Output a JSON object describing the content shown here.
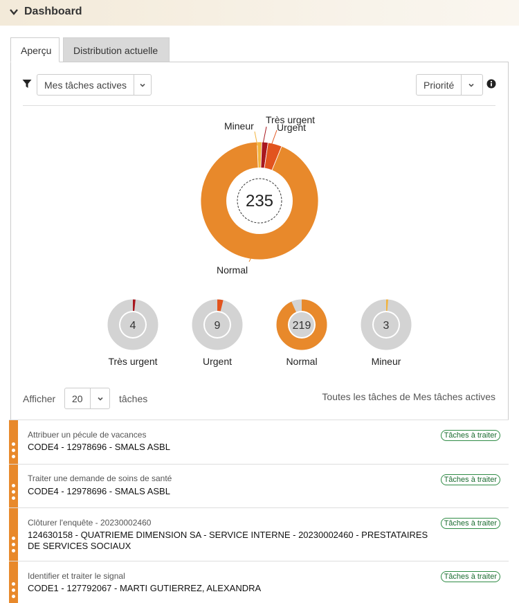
{
  "header": {
    "title": "Dashboard"
  },
  "tabs": [
    {
      "label": "Aperçu"
    },
    {
      "label": "Distribution actuelle"
    }
  ],
  "filter": {
    "selected": "Mes tâches actives"
  },
  "sort": {
    "selected": "Priorité"
  },
  "chart_data": {
    "type": "pie",
    "total": "235",
    "categories": [
      "Très urgent",
      "Urgent",
      "Normal",
      "Mineur"
    ],
    "values": [
      4,
      9,
      219,
      3
    ],
    "colors": [
      "#a8171f",
      "#e2541e",
      "#e8892b",
      "#f2b33d"
    ]
  },
  "mini_charts": [
    {
      "label": "Très urgent",
      "value": "4",
      "color": "#a8171f",
      "fraction": 0.017
    },
    {
      "label": "Urgent",
      "value": "9",
      "color": "#e2541e",
      "fraction": 0.038
    },
    {
      "label": "Normal",
      "value": "219",
      "color": "#e8892b",
      "fraction": 0.932
    },
    {
      "label": "Mineur",
      "value": "3",
      "color": "#f2b33d",
      "fraction": 0.013
    }
  ],
  "pagination": {
    "show_label": "Afficher",
    "count": "20",
    "unit": "tâches"
  },
  "list_title": "Toutes les tâches de Mes tâches actives",
  "tasks": [
    {
      "title": "Attribuer un pécule de vacances",
      "subtitle": "CODE4 - 12978696 - SMALS ASBL",
      "badge": "Tâches à traiter"
    },
    {
      "title": "Traiter une demande de soins de santé",
      "subtitle": "CODE4 - 12978696 - SMALS ASBL",
      "badge": "Tâches à traiter"
    },
    {
      "title": "Clôturer l'enquête - 20230002460",
      "subtitle": "124630158 - QUATRIEME DIMENSION SA - SERVICE INTERNE - 20230002460 - PRESTATAIRES DE SERVICES SOCIAUX",
      "badge": "Tâches à traiter"
    },
    {
      "title": "Identifier et traiter le signal",
      "subtitle": "CODE1 - 127792067 - MARTI GUTIERREZ, ALEXANDRA",
      "badge": "Tâches à traiter"
    }
  ]
}
